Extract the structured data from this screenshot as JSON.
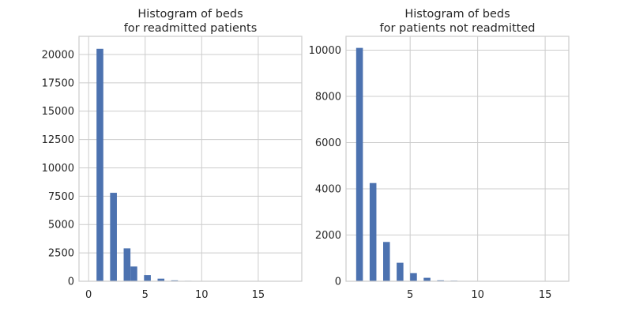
{
  "chart_data": [
    {
      "type": "bar",
      "title": "Histogram of beds\nfor readmitted patients",
      "xlabel": "",
      "ylabel": "",
      "xlim": [
        -0.85,
        18.85
      ],
      "ylim": [
        0,
        21600
      ],
      "xticks": [
        0,
        5,
        10,
        15
      ],
      "yticks": [
        0,
        2500,
        5000,
        7500,
        10000,
        12500,
        15000,
        17500,
        20000
      ],
      "grid": true,
      "bar_color": "#4c72b0",
      "bins": [
        {
          "x0": 0.7,
          "x1": 1.3,
          "value": 20500
        },
        {
          "x0": 1.9,
          "x1": 2.5,
          "value": 7800
        },
        {
          "x0": 3.1,
          "x1": 3.7,
          "value": 2900
        },
        {
          "x0": 3.7,
          "x1": 4.3,
          "value": 1300
        },
        {
          "x0": 4.9,
          "x1": 5.5,
          "value": 550
        },
        {
          "x0": 6.1,
          "x1": 6.7,
          "value": 230
        },
        {
          "x0": 7.3,
          "x1": 7.9,
          "value": 80
        },
        {
          "x0": 8.5,
          "x1": 9.1,
          "value": 40
        },
        {
          "x0": 9.1,
          "x1": 9.7,
          "value": 25
        },
        {
          "x0": 10.3,
          "x1": 10.9,
          "value": 15
        },
        {
          "x0": 11.5,
          "x1": 12.1,
          "value": 10
        },
        {
          "x0": 12.7,
          "x1": 13.3,
          "value": 8
        },
        {
          "x0": 13.9,
          "x1": 14.5,
          "value": 6
        },
        {
          "x0": 15.1,
          "x1": 15.7,
          "value": 4
        },
        {
          "x0": 16.3,
          "x1": 16.9,
          "value": 3
        },
        {
          "x0": 17.5,
          "x1": 18.1,
          "value": 2
        }
      ]
    },
    {
      "type": "bar",
      "title": "Histogram of beds\nfor patients not readmitted",
      "xlabel": "",
      "ylabel": "",
      "xlim": [
        0.25,
        16.75
      ],
      "ylim": [
        0,
        10600
      ],
      "xticks": [
        5,
        10,
        15
      ],
      "yticks": [
        0,
        2000,
        4000,
        6000,
        8000,
        10000
      ],
      "grid": true,
      "bar_color": "#4c72b0",
      "bins": [
        {
          "x0": 1.0,
          "x1": 1.5,
          "value": 10100
        },
        {
          "x0": 2.0,
          "x1": 2.5,
          "value": 4250
        },
        {
          "x0": 3.0,
          "x1": 3.5,
          "value": 1700
        },
        {
          "x0": 4.0,
          "x1": 4.5,
          "value": 800
        },
        {
          "x0": 5.0,
          "x1": 5.5,
          "value": 350
        },
        {
          "x0": 6.0,
          "x1": 6.5,
          "value": 150
        },
        {
          "x0": 7.0,
          "x1": 7.5,
          "value": 40
        },
        {
          "x0": 8.0,
          "x1": 8.5,
          "value": 25
        },
        {
          "x0": 9.0,
          "x1": 9.5,
          "value": 15
        },
        {
          "x0": 10.0,
          "x1": 10.5,
          "value": 10
        },
        {
          "x0": 11.0,
          "x1": 11.5,
          "value": 8
        },
        {
          "x0": 12.0,
          "x1": 12.5,
          "value": 6
        },
        {
          "x0": 13.0,
          "x1": 13.5,
          "value": 5
        },
        {
          "x0": 14.0,
          "x1": 14.5,
          "value": 3
        },
        {
          "x0": 15.0,
          "x1": 15.5,
          "value": 2
        }
      ]
    }
  ]
}
